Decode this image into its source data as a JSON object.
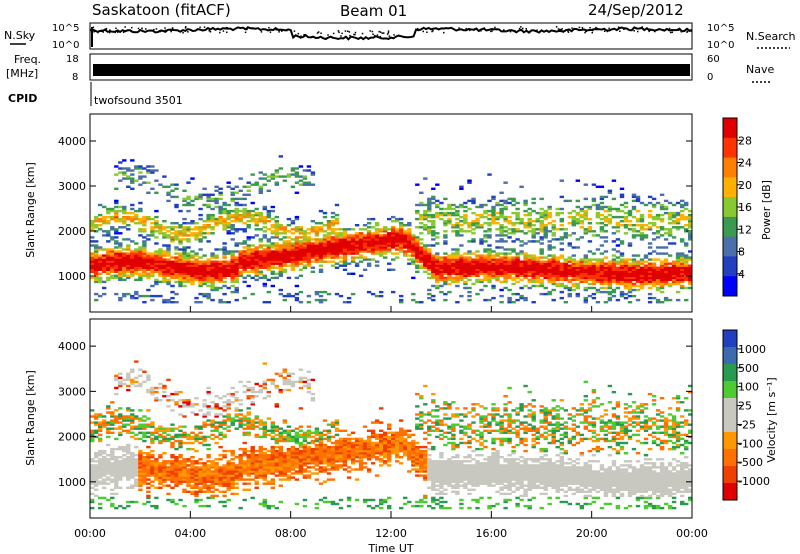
{
  "header": {
    "radar": "Saskatoon (fitACF)",
    "beam": "Beam 01",
    "date": "24/Sep/2012"
  },
  "noise_panel": {
    "left_label": "N.Sky",
    "right_label": "N.Search",
    "ticks": [
      "10^5",
      "10^0"
    ]
  },
  "freq_panel": {
    "left_label_1": "Freq.",
    "left_label_2": "[MHz]",
    "left_ticks": [
      "18",
      "8"
    ],
    "right_label": "Nave",
    "right_ticks": [
      "60",
      "0"
    ]
  },
  "cpid_panel": {
    "label": "CPID",
    "value": "twofsound 3501"
  },
  "chart_data": [
    {
      "type": "heatmap",
      "name": "Power",
      "ylabel": "Slant Range [km]",
      "ylim": [
        200,
        4600
      ],
      "yticks": [
        "1000",
        "2000",
        "3000",
        "4000"
      ],
      "colorbar": {
        "title": "Power [dB]",
        "ticks": [
          "28",
          "24",
          "20",
          "16",
          "12",
          "8",
          "4"
        ],
        "colors": [
          "#e00000",
          "#ff3300",
          "#ff8000",
          "#ffb000",
          "#88c830",
          "#3a9a50",
          "#4a6faa",
          "#2040c0",
          "#0000ff"
        ]
      }
    },
    {
      "type": "heatmap",
      "name": "Velocity",
      "ylabel": "Slant Range [km]",
      "ylim": [
        200,
        4600
      ],
      "yticks": [
        "1000",
        "2000",
        "3000",
        "4000"
      ],
      "colorbar": {
        "title": "Velocity [m s⁻¹]",
        "ticks": [
          "1000",
          "500",
          "100",
          "25",
          "-25",
          "-100",
          "-500",
          "-1000"
        ],
        "colors": [
          "#2040c0",
          "#3a6ab0",
          "#2a9a50",
          "#4ccc30",
          "#c8c8c0",
          "#c8c8c0",
          "#ff9800",
          "#ff7000",
          "#f04000",
          "#e00000"
        ]
      }
    }
  ],
  "x_axis": {
    "ticks": [
      "00:00",
      "04:00",
      "08:00",
      "12:00",
      "16:00",
      "20:00",
      "00:00"
    ],
    "label": "Time UT"
  }
}
